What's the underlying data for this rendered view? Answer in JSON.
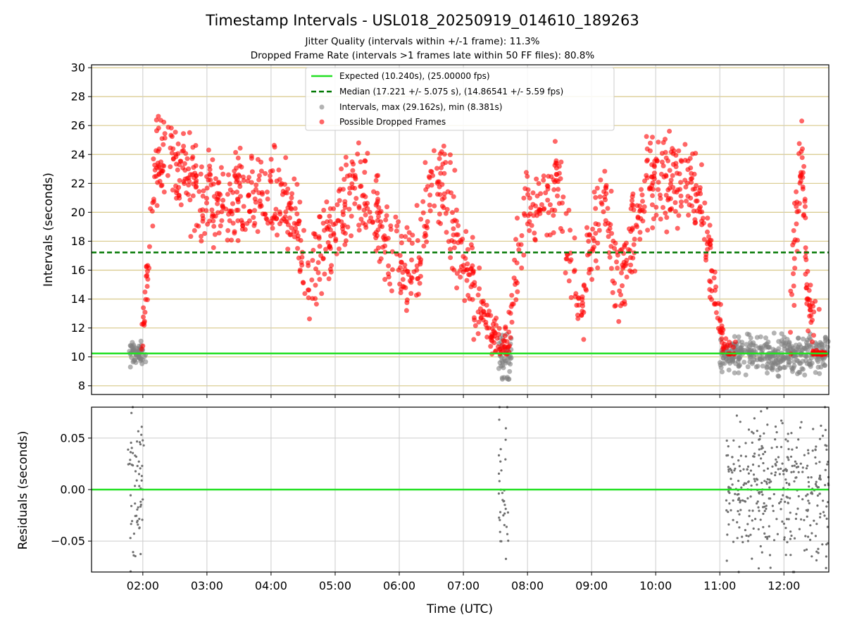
{
  "chart_data": {
    "type": "scatter",
    "title": "Timestamp Intervals - USL018_20250919_014610_189263",
    "subtitles": [
      "Jitter Quality (intervals within +/-1 frame): 11.3%",
      "Dropped Frame Rate (intervals >1 frames late within 50 FF files): 80.8%"
    ],
    "xlabel": "Time (UTC)",
    "x_ticks": [
      "02:00",
      "03:00",
      "04:00",
      "05:00",
      "06:00",
      "07:00",
      "08:00",
      "09:00",
      "10:00",
      "11:00",
      "12:00"
    ],
    "x_range_hours": [
      1.2,
      12.7
    ],
    "top_panel": {
      "ylabel": "Intervals (seconds)",
      "ylim": [
        7.4,
        30.2
      ],
      "y_ticks": [
        8,
        10,
        12,
        14,
        16,
        18,
        20,
        22,
        24,
        26,
        28,
        30
      ],
      "expected": 10.24,
      "median": 17.221,
      "grid": "horizontal",
      "legend_position": "top-center",
      "legend": [
        "Expected (10.240s), (25.00000 fps)",
        "Median (17.221 +/- 5.075 s), (14.86541 +/- 5.59 fps)",
        "Intervals, max (29.162s), min (8.381s)",
        "Possible Dropped Frames"
      ],
      "colors": {
        "expected": "#22e022",
        "median": "#007700",
        "intervals": "#808080",
        "dropped": "#ff0000"
      },
      "dropped_trend": [
        [
          1.98,
          11.0
        ],
        [
          2.05,
          14.5
        ],
        [
          2.12,
          19.5
        ],
        [
          2.2,
          23.5
        ],
        [
          2.35,
          24.0
        ],
        [
          2.5,
          23.5
        ],
        [
          2.7,
          22.0
        ],
        [
          2.9,
          21.5
        ],
        [
          3.1,
          21.0
        ],
        [
          3.3,
          20.5
        ],
        [
          3.5,
          20.8
        ],
        [
          3.7,
          21.5
        ],
        [
          3.9,
          21.3
        ],
        [
          4.1,
          21.0
        ],
        [
          4.3,
          20.0
        ],
        [
          4.4,
          18.5
        ],
        [
          4.5,
          16.5
        ],
        [
          4.6,
          16.0
        ],
        [
          4.75,
          17.5
        ],
        [
          4.9,
          18.5
        ],
        [
          5.1,
          19.5
        ],
        [
          5.3,
          21.5
        ],
        [
          5.5,
          21.0
        ],
        [
          5.65,
          20.0
        ],
        [
          5.8,
          17.0
        ],
        [
          5.95,
          16.5
        ],
        [
          6.15,
          15.5
        ],
        [
          6.3,
          16.5
        ],
        [
          6.4,
          19.5
        ],
        [
          6.55,
          22.0
        ],
        [
          6.7,
          21.5
        ],
        [
          6.85,
          19.0
        ],
        [
          7.0,
          16.5
        ],
        [
          7.15,
          15.0
        ],
        [
          7.3,
          13.5
        ],
        [
          7.45,
          11.5
        ],
        [
          7.6,
          10.5
        ],
        [
          7.7,
          11.0
        ],
        [
          7.8,
          15.0
        ],
        [
          7.95,
          19.0
        ],
        [
          8.15,
          21.0
        ],
        [
          8.35,
          20.5
        ],
        [
          8.5,
          22.5
        ],
        [
          8.65,
          17.0
        ],
        [
          8.75,
          14.0
        ],
        [
          8.85,
          13.0
        ],
        [
          8.95,
          17.0
        ],
        [
          9.1,
          19.0
        ],
        [
          9.2,
          22.0
        ],
        [
          9.3,
          18.0
        ],
        [
          9.42,
          15.0
        ],
        [
          9.55,
          16.5
        ],
        [
          9.7,
          20.0
        ],
        [
          9.85,
          23.0
        ],
        [
          10.0,
          22.5
        ],
        [
          10.2,
          22.0
        ],
        [
          10.4,
          22.5
        ],
        [
          10.6,
          22.0
        ],
        [
          10.75,
          19.5
        ],
        [
          10.85,
          16.5
        ],
        [
          10.95,
          13.5
        ],
        [
          11.05,
          11.0
        ],
        [
          11.15,
          10.5
        ],
        [
          11.25,
          10.5
        ]
      ],
      "dropped_late": [
        [
          12.1,
          12.0
        ],
        [
          12.15,
          16.5
        ],
        [
          12.22,
          20.0
        ],
        [
          12.28,
          24.0
        ],
        [
          12.33,
          19.0
        ],
        [
          12.38,
          13.0
        ],
        [
          12.55,
          10.3
        ]
      ],
      "intervals_clusters": [
        {
          "x_range": [
            1.78,
            2.05
          ],
          "center": 10.2,
          "spread": 0.8
        },
        {
          "x_range": [
            7.55,
            7.75
          ],
          "center": 10.0,
          "spread": 1.5
        },
        {
          "x_range": [
            11.0,
            12.7
          ],
          "center": 10.2,
          "spread": 1.2
        }
      ]
    },
    "bottom_panel": {
      "ylabel": "Residuals (seconds)",
      "ylim": [
        -0.08,
        0.08
      ],
      "y_ticks": [
        "0.05",
        "0.00",
        "−0.05"
      ],
      "y_tick_values": [
        0.05,
        0.0,
        -0.05
      ],
      "zero_line": 0.0,
      "grid": "both",
      "residual_clusters": [
        {
          "x_range": [
            1.75,
            2.02
          ],
          "spread": 0.075
        },
        {
          "x_range": [
            7.55,
            7.7
          ],
          "spread": 0.08
        },
        {
          "x_range": [
            11.1,
            12.7
          ],
          "spread": 0.08
        }
      ]
    }
  }
}
